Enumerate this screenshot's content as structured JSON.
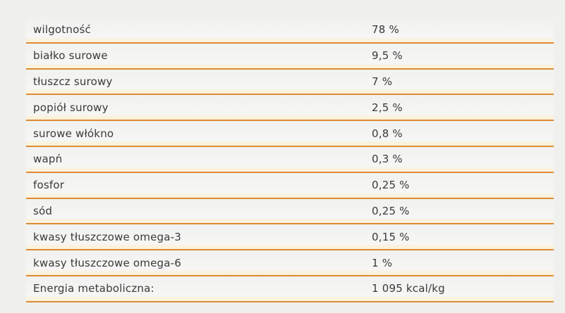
{
  "colors": {
    "accent_line": "#dd8a33",
    "background": "#f0f0ef",
    "row_highlight": "#fdf5e2",
    "text": "#3a3a3a"
  },
  "table": {
    "rows": [
      {
        "label": "wilgotność",
        "value": "78 %"
      },
      {
        "label": "białko surowe",
        "value": "9,5 %"
      },
      {
        "label": "tłuszcz surowy",
        "value": "7 %"
      },
      {
        "label": "popiół surowy",
        "value": "2,5 %"
      },
      {
        "label": "surowe włókno",
        "value": "0,8 %"
      },
      {
        "label": "wapń",
        "value": "0,3 %"
      },
      {
        "label": "fosfor",
        "value": "0,25 %"
      },
      {
        "label": "sód",
        "value": "0,25 %"
      },
      {
        "label": "kwasy tłuszczowe omega-3",
        "value": "0,15 %"
      },
      {
        "label": "kwasy tłuszczowe omega-6",
        "value": "1 %"
      },
      {
        "label": "Energia metaboliczna:",
        "value": "1 095 kcal/kg"
      }
    ]
  }
}
